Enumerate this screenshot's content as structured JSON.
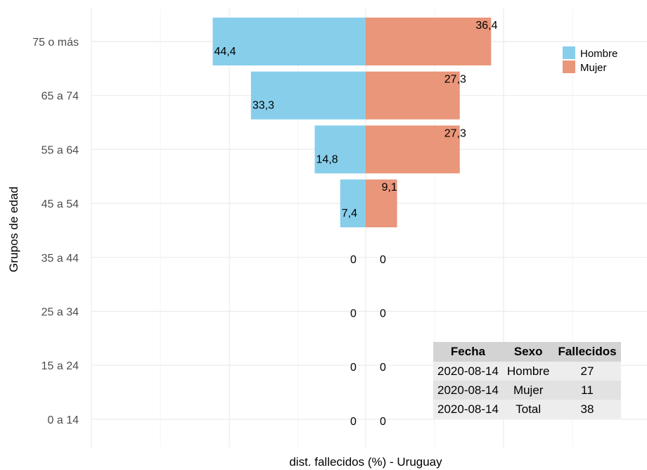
{
  "chart_data": {
    "type": "bar",
    "orientation": "horizontal",
    "layout": "population-pyramid",
    "categories": [
      "75 o más",
      "65 a 74",
      "55 a 64",
      "45 a 54",
      "35 a 44",
      "25 a 34",
      "15 a 24",
      "0 a 14"
    ],
    "series": [
      {
        "name": "Hombre",
        "color": "#87ceeb",
        "side": "left",
        "values": [
          44.4,
          33.3,
          14.8,
          7.4,
          0,
          0,
          0,
          0
        ],
        "labels": [
          "44,4",
          "33,3",
          "14,8",
          "7,4",
          "0",
          "0",
          "0",
          "0"
        ]
      },
      {
        "name": "Mujer",
        "color": "#e9967a",
        "side": "right",
        "values": [
          36.4,
          27.3,
          27.3,
          9.1,
          0,
          0,
          0,
          0
        ],
        "labels": [
          "36,4",
          "27,3",
          "27,3",
          "9,1",
          "0",
          "0",
          "0",
          "0"
        ]
      }
    ],
    "xlabel": "dist. fallecidos (%) - Uruguay",
    "ylabel": "Grupos de edad",
    "legend_position": "top-right",
    "grid": true,
    "table": {
      "headers": [
        "Fecha",
        "Sexo",
        "Fallecidos"
      ],
      "rows": [
        [
          "2020-08-14",
          "Hombre",
          "27"
        ],
        [
          "2020-08-14",
          "Mujer",
          "11"
        ],
        [
          "2020-08-14",
          "Total",
          "38"
        ]
      ]
    }
  }
}
